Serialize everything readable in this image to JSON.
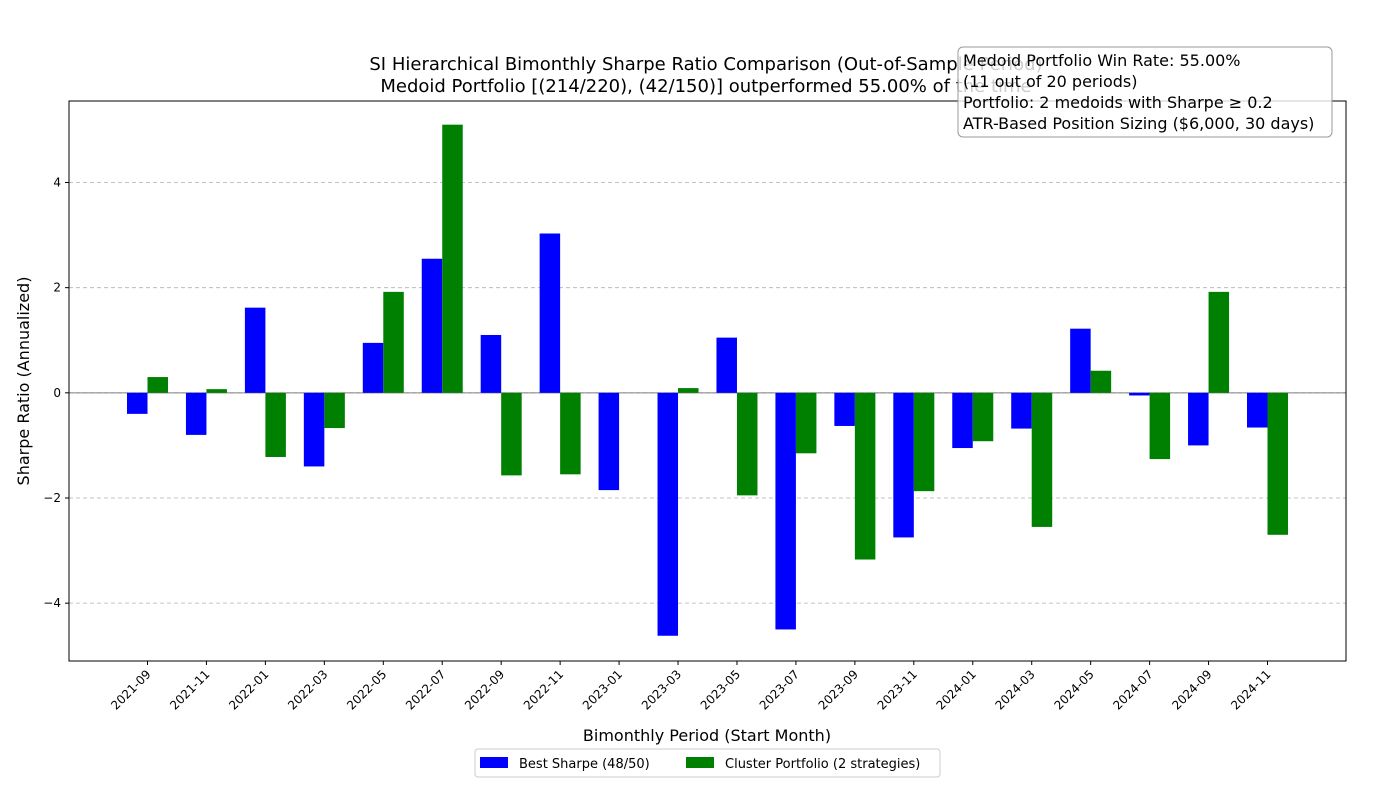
{
  "chart_data": {
    "type": "bar",
    "title": "SI Hierarchical Bimonthly Sharpe Ratio Comparison (Out-of-Sample Period)",
    "subtitle": "Medoid Portfolio [(214/220), (42/150)] outperformed 55.00% of the time",
    "xlabel": "Bimonthly Period (Start Month)",
    "ylabel": "Sharpe Ratio (Annualized)",
    "ylim": [
      -5.1,
      5.55
    ],
    "yticks": [
      -4,
      -2,
      0,
      2,
      4
    ],
    "ytick_labels": [
      "−4",
      "−2",
      "0",
      "2",
      "4"
    ],
    "grid": true,
    "legend_position": "bottom-center",
    "categories": [
      "2021-09",
      "2021-11",
      "2022-01",
      "2022-03",
      "2022-05",
      "2022-07",
      "2022-09",
      "2022-11",
      "2023-01",
      "2023-03",
      "2023-05",
      "2023-07",
      "2023-09",
      "2023-11",
      "2024-01",
      "2024-03",
      "2024-05",
      "2024-07",
      "2024-09",
      "2024-11"
    ],
    "series": [
      {
        "name": "Best Sharpe (48/50)",
        "color": "#0000ff",
        "values": [
          -0.4,
          -0.8,
          1.62,
          -1.4,
          0.95,
          2.55,
          1.1,
          3.03,
          -1.85,
          -4.62,
          1.05,
          -4.5,
          -0.63,
          -2.75,
          -1.05,
          -0.68,
          1.22,
          -0.05,
          -1.0,
          -0.66
        ]
      },
      {
        "name": "Cluster Portfolio (2 strategies)",
        "color": "#008000",
        "values": [
          0.3,
          0.07,
          -1.22,
          -0.67,
          1.92,
          5.1,
          -1.57,
          -1.55,
          0.0,
          0.09,
          -1.95,
          -1.15,
          -3.17,
          -1.87,
          -0.92,
          -2.55,
          0.42,
          -1.26,
          1.92,
          -2.7
        ]
      }
    ],
    "annotation": [
      "Medoid Portfolio Win Rate: 55.00%",
      "(11 out of 20 periods)",
      "Portfolio: 2 medoids with Sharpe ≥ 0.2",
      "ATR-Based Position Sizing ($6,000, 30 days)"
    ]
  }
}
